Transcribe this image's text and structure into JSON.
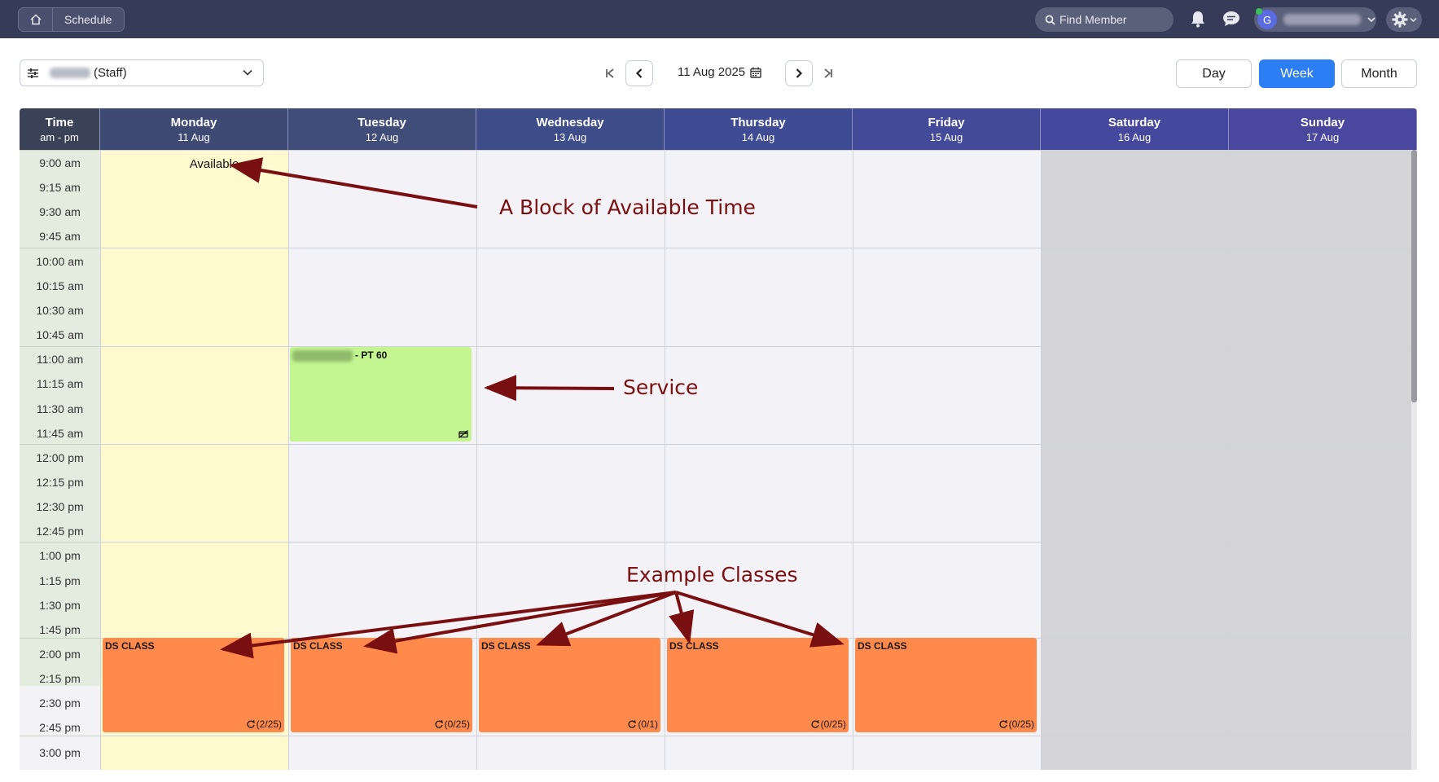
{
  "topbar": {
    "breadcrumb_label": "Schedule",
    "search_placeholder": "Find Member",
    "avatar_initial": "G"
  },
  "controls": {
    "staff_suffix": "(Staff)",
    "date": "11 Aug 2025",
    "views": [
      "Day",
      "Week",
      "Month"
    ],
    "active_view": "Week"
  },
  "calendar": {
    "time_header": "Time",
    "time_sub": "am - pm",
    "days": [
      {
        "day": "Monday",
        "date": "11 Aug"
      },
      {
        "day": "Tuesday",
        "date": "12 Aug"
      },
      {
        "day": "Wednesday",
        "date": "13 Aug"
      },
      {
        "day": "Thursday",
        "date": "14 Aug"
      },
      {
        "day": "Friday",
        "date": "15 Aug"
      },
      {
        "day": "Saturday",
        "date": "16 Aug"
      },
      {
        "day": "Sunday",
        "date": "17 Aug"
      }
    ],
    "times": [
      "9:00 am",
      "9:15 am",
      "9:30 am",
      "9:45 am",
      "10:00 am",
      "10:15 am",
      "10:30 am",
      "10:45 am",
      "11:00 am",
      "11:15 am",
      "11:30 am",
      "11:45 am",
      "12:00 pm",
      "12:15 pm",
      "12:30 pm",
      "12:45 pm",
      "1:00 pm",
      "1:15 pm",
      "1:30 pm",
      "1:45 pm",
      "2:00 pm",
      "2:15 pm",
      "2:30 pm",
      "2:45 pm",
      "3:00 pm"
    ],
    "available_label": "Available",
    "service_label": "- PT 60",
    "classes": [
      {
        "name": "DS CLASS",
        "count": "(2/25)"
      },
      {
        "name": "DS CLASS",
        "count": "(0/25)"
      },
      {
        "name": "DS CLASS",
        "count": "(0/1)"
      },
      {
        "name": "DS CLASS",
        "count": "(0/25)"
      },
      {
        "name": "DS CLASS",
        "count": "(0/25)"
      }
    ]
  },
  "annotations": {
    "available": "A Block of Available Time",
    "service": "Service",
    "classes": "Example Classes"
  }
}
